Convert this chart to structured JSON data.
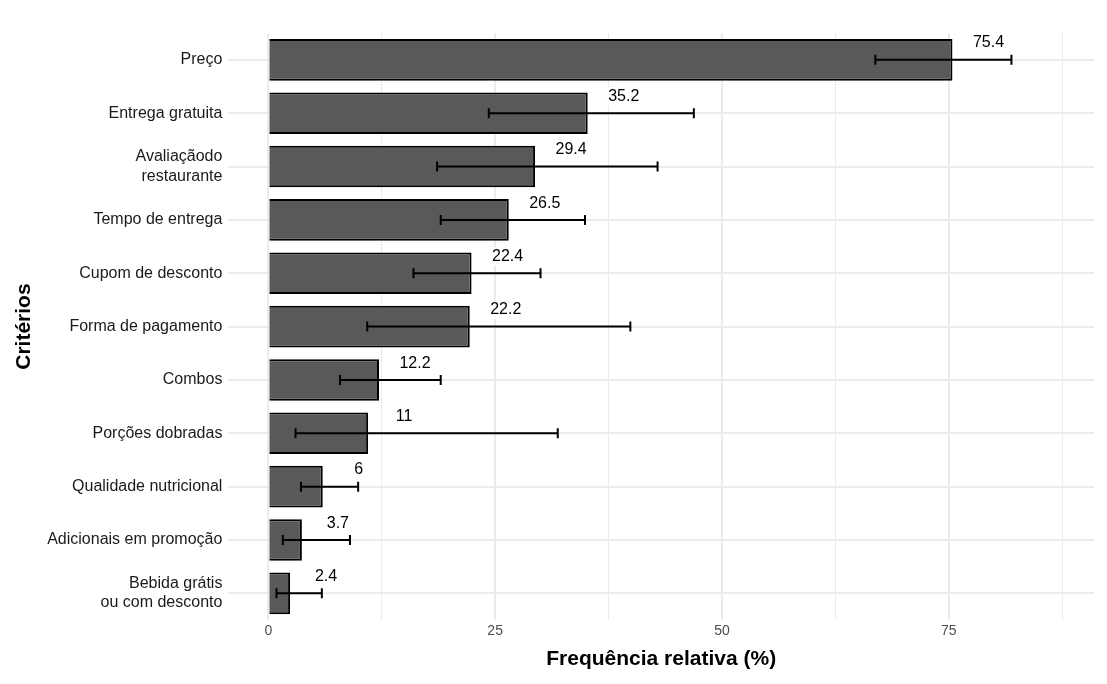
{
  "chart_data": {
    "type": "bar",
    "orientation": "horizontal",
    "xlabel": "Frequência relativa (%)",
    "ylabel": "Critérios",
    "categories": [
      "Preço",
      "Entrega gratuita",
      "Avaliaçãodo\nrestaurante",
      "Tempo de entrega",
      "Cupom de desconto",
      "Forma de pagamento",
      "Combos",
      "Porções dobradas",
      "Qualidade nutricional",
      "Adicionais em promoção",
      "Bebida grátis\nou com desconto"
    ],
    "values": [
      75.4,
      35.2,
      29.4,
      26.5,
      22.4,
      22.2,
      12.2,
      11,
      6,
      3.7,
      2.4
    ],
    "errors": [
      [
        66.9,
        81.9
      ],
      [
        24.3,
        46.9
      ],
      [
        18.6,
        42.9
      ],
      [
        19.0,
        34.9
      ],
      [
        16.0,
        30.0
      ],
      [
        10.9,
        39.9
      ],
      [
        7.9,
        19.0
      ],
      [
        3.0,
        31.9
      ],
      [
        3.6,
        9.9
      ],
      [
        1.6,
        9.0
      ],
      [
        0.9,
        5.9
      ]
    ],
    "color": "#595959",
    "data_labels": true,
    "grid": true,
    "xlim": [
      -4.4,
      91
    ],
    "xticks": [
      0,
      {
        "value": 12.5,
        "label": null
      },
      25,
      {
        "value": 37.5,
        "label": null
      },
      50,
      {
        "value": 62.5,
        "label": null
      },
      75,
      {
        "value": 87.5,
        "label": null
      }
    ]
  }
}
